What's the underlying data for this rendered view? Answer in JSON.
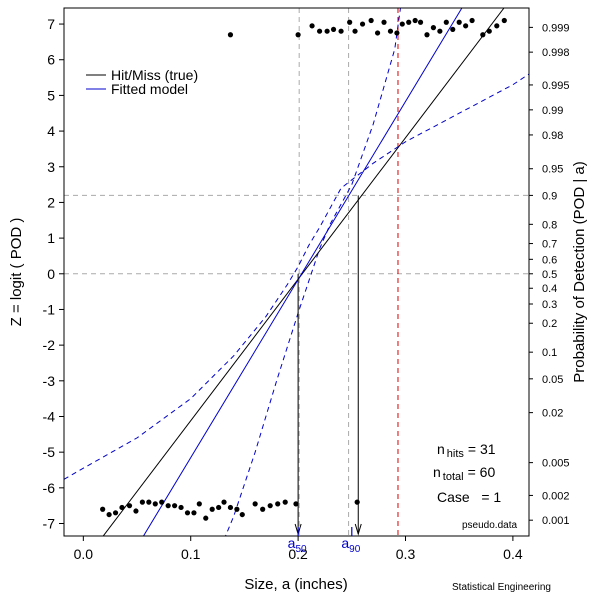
{
  "chart_data": {
    "type": "scatter",
    "title": "",
    "xlabel": "Size, a (inches)",
    "ylabel": "Z = logit ( POD )",
    "y2label": "Probability of Detection (POD | a)",
    "xlim": [
      -0.018,
      0.415
    ],
    "ylim": [
      -7.35,
      7.45
    ],
    "x_ticks": [
      0.0,
      0.1,
      0.2,
      0.3,
      0.4
    ],
    "x_tick_labels": [
      "0.0",
      "0.1",
      "0.2",
      "0.3",
      "0.4"
    ],
    "y_ticks": [
      -7,
      -6,
      -5,
      -4,
      -3,
      -2,
      -1,
      0,
      1,
      2,
      3,
      4,
      5,
      6,
      7
    ],
    "y_tick_labels": [
      "-7",
      "-6",
      "-5",
      "-4",
      "-3",
      "-2",
      "-1",
      "0",
      "1",
      "2",
      "3",
      "4",
      "5",
      "6",
      "7"
    ],
    "right_axis_probs": [
      0.001,
      0.002,
      0.005,
      0.02,
      0.05,
      0.1,
      0.2,
      0.3,
      0.4,
      0.5,
      0.6,
      0.7,
      0.8,
      0.9,
      0.95,
      0.98,
      0.99,
      0.995,
      0.998,
      0.999
    ],
    "right_axis_labels": [
      "0.001",
      "0.002",
      "0.005",
      "0.02",
      "0.05",
      "0.1",
      "0.2",
      "0.3",
      "0.4",
      "0.5",
      "0.6",
      "0.7",
      "0.8",
      "0.9",
      "0.95",
      "0.98",
      "0.99",
      "0.995",
      "0.998",
      "0.999"
    ],
    "series": [
      {
        "name": "Hits",
        "color": "#000000",
        "points": [
          [
            0.137,
            6.7
          ],
          [
            0.2,
            6.7
          ],
          [
            0.213,
            6.95
          ],
          [
            0.22,
            6.8
          ],
          [
            0.227,
            6.8
          ],
          [
            0.233,
            6.85
          ],
          [
            0.24,
            6.8
          ],
          [
            0.248,
            7.05
          ],
          [
            0.253,
            6.8
          ],
          [
            0.26,
            7.0
          ],
          [
            0.268,
            7.1
          ],
          [
            0.274,
            6.75
          ],
          [
            0.28,
            7.05
          ],
          [
            0.286,
            6.8
          ],
          [
            0.292,
            6.75
          ],
          [
            0.297,
            7.0
          ],
          [
            0.303,
            7.05
          ],
          [
            0.309,
            7.1
          ],
          [
            0.314,
            7.05
          ],
          [
            0.32,
            6.7
          ],
          [
            0.326,
            6.9
          ],
          [
            0.332,
            6.8
          ],
          [
            0.338,
            7.05
          ],
          [
            0.344,
            6.85
          ],
          [
            0.35,
            7.05
          ],
          [
            0.356,
            6.95
          ],
          [
            0.362,
            7.1
          ],
          [
            0.372,
            6.7
          ],
          [
            0.378,
            6.8
          ],
          [
            0.385,
            6.95
          ],
          [
            0.392,
            7.1
          ]
        ]
      },
      {
        "name": "Misses",
        "color": "#000000",
        "points": [
          [
            0.018,
            -6.6
          ],
          [
            0.024,
            -6.75
          ],
          [
            0.03,
            -6.7
          ],
          [
            0.036,
            -6.55
          ],
          [
            0.043,
            -6.5
          ],
          [
            0.049,
            -6.65
          ],
          [
            0.055,
            -6.4
          ],
          [
            0.061,
            -6.4
          ],
          [
            0.067,
            -6.45
          ],
          [
            0.073,
            -6.4
          ],
          [
            0.079,
            -6.5
          ],
          [
            0.085,
            -6.5
          ],
          [
            0.091,
            -6.55
          ],
          [
            0.097,
            -6.7
          ],
          [
            0.103,
            -6.7
          ],
          [
            0.108,
            -6.45
          ],
          [
            0.114,
            -6.85
          ],
          [
            0.12,
            -6.6
          ],
          [
            0.126,
            -6.55
          ],
          [
            0.131,
            -6.4
          ],
          [
            0.137,
            -6.55
          ],
          [
            0.143,
            -6.6
          ],
          [
            0.148,
            -6.75
          ],
          [
            0.16,
            -6.45
          ],
          [
            0.167,
            -6.6
          ],
          [
            0.174,
            -6.5
          ],
          [
            0.181,
            -6.45
          ],
          [
            0.188,
            -6.4
          ],
          [
            0.198,
            -6.45
          ],
          [
            0.255,
            -6.4
          ]
        ]
      }
    ],
    "lines": [
      {
        "name": "Hit/Miss (true)",
        "color": "#000000",
        "dash": "solid",
        "points": [
          [
            0.016,
            -7.45
          ],
          [
            0.3917,
            7.45
          ]
        ]
      },
      {
        "name": "Fitted model",
        "color": "#0000cc",
        "dash": "solid",
        "points": [
          [
            0.054,
            -7.45
          ],
          [
            0.3525,
            7.45
          ]
        ]
      },
      {
        "name": "Confidence bound (upper)",
        "color": "#0000cc",
        "dash": "dashed",
        "points": [
          [
            -0.018,
            -5.76
          ],
          [
            0.0,
            -5.45
          ],
          [
            0.05,
            -4.6
          ],
          [
            0.1,
            -3.5
          ],
          [
            0.14,
            -2.3
          ],
          [
            0.17,
            -1.2
          ],
          [
            0.19,
            -0.3
          ],
          [
            0.2,
            0.2
          ],
          [
            0.21,
            0.8
          ],
          [
            0.22,
            1.3
          ],
          [
            0.24,
            2.4
          ],
          [
            0.27,
            3.1
          ],
          [
            0.3,
            3.7
          ],
          [
            0.35,
            4.5
          ],
          [
            0.4,
            5.3
          ],
          [
            0.415,
            5.6
          ]
        ]
      },
      {
        "name": "Confidence bound (lower)",
        "color": "#0000cc",
        "dash": "dashed",
        "points": [
          [
            0.131,
            -7.45
          ],
          [
            0.14,
            -6.8
          ],
          [
            0.16,
            -5.0
          ],
          [
            0.18,
            -3.0
          ],
          [
            0.2,
            -1.1
          ],
          [
            0.22,
            0.7
          ],
          [
            0.23,
            1.4
          ],
          [
            0.25,
            2.5
          ],
          [
            0.27,
            4.2
          ],
          [
            0.29,
            6.3
          ],
          [
            0.2953,
            7.45
          ]
        ]
      }
    ],
    "reference_lines": [
      {
        "orientation": "horizontal",
        "value": 2.197,
        "color": "#aaaaaa",
        "dash": "dashed"
      },
      {
        "orientation": "horizontal",
        "value": 0.0,
        "color": "#aaaaaa",
        "dash": "dashed"
      },
      {
        "orientation": "vertical",
        "value": 0.201,
        "color": "#aaaaaa",
        "dash": "dashed"
      },
      {
        "orientation": "vertical",
        "value": 0.247,
        "color": "#aaaaaa",
        "dash": "dashed"
      },
      {
        "orientation": "vertical",
        "value": 0.293,
        "color": "#dd0000",
        "dash": "dashed"
      }
    ],
    "arrows": [
      {
        "x": 0.2,
        "y_from": 0.0,
        "y_to": -7.35
      },
      {
        "x": 0.256,
        "y_from": 2.197,
        "y_to": -7.35
      }
    ],
    "markers": [
      {
        "label": "a",
        "subscript": "50",
        "x": 0.2,
        "color": "#0000cc"
      },
      {
        "label": "a",
        "subscript": "90",
        "x": 0.25,
        "color": "#0000cc"
      }
    ],
    "legend": {
      "position": "top-left",
      "entries": [
        {
          "label": "Hit/Miss (true)",
          "color": "#000000"
        },
        {
          "label": "Fitted model",
          "color": "#0000cc"
        }
      ]
    }
  },
  "stats": {
    "hits_label": "n",
    "hits_sub": "hits",
    "hits_value": "= 31",
    "total_label": "n",
    "total_sub": "total",
    "total_value": "= 60",
    "case_text": "Case   = 1"
  },
  "footer": {
    "pseudo_data": "pseudo.data",
    "credit": "Statistical Engineering"
  }
}
